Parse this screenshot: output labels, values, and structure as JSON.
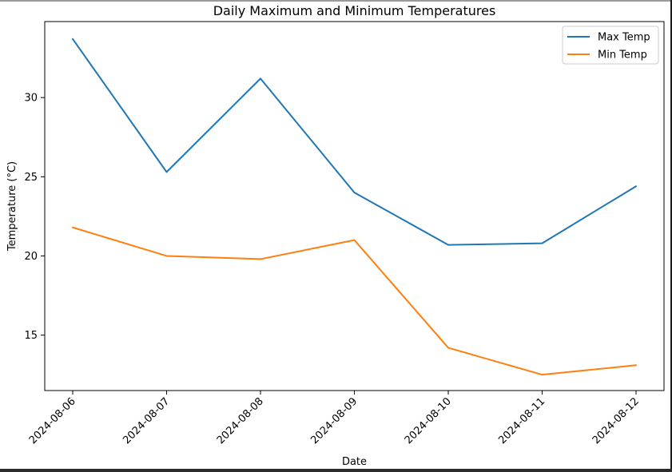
{
  "chart_data": {
    "type": "line",
    "title": "Daily Maximum and Minimum Temperatures",
    "xlabel": "Date",
    "ylabel": "Temperature (°C)",
    "categories": [
      "2024-08-06",
      "2024-08-07",
      "2024-08-08",
      "2024-08-09",
      "2024-08-10",
      "2024-08-11",
      "2024-08-12"
    ],
    "series": [
      {
        "name": "Max Temp",
        "color": "#1f77b4",
        "values": [
          33.7,
          25.3,
          31.2,
          24.0,
          20.7,
          20.8,
          24.4
        ]
      },
      {
        "name": "Min Temp",
        "color": "#ff7f0e",
        "values": [
          21.8,
          20.0,
          19.8,
          21.0,
          14.2,
          12.5,
          13.1
        ]
      }
    ],
    "yticks": [
      15,
      20,
      25,
      30
    ],
    "ylim": [
      11.5,
      34.8
    ],
    "legend": "top-right",
    "grid": false
  }
}
